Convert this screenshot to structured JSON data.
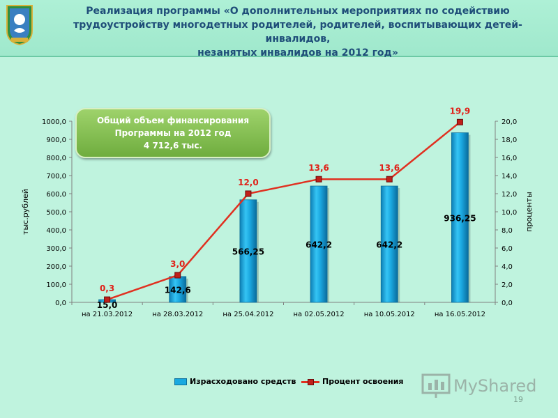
{
  "header": {
    "title_lines": [
      "Реализация программы «О дополнительных мероприятиях по содействию",
      "трудоустройству многодетных родителей, родителей, воспитывающих детей-инвалидов,",
      "незанятых инвалидов на 2012 год»"
    ]
  },
  "finance_box": {
    "lines": [
      "Общий объем финансирования",
      "Программы на 2012 год",
      "4 712,6 тыс."
    ]
  },
  "chart_data": {
    "type": "bar",
    "categories": [
      "на 21.03.2012",
      "на 28.03.2012",
      "на 25.04.2012",
      "на 02.05.2012",
      "на 10.05.2012",
      "на 16.05.2012"
    ],
    "series": [
      {
        "name": "Израсходовано средств",
        "type": "bar",
        "axis": "left",
        "values": [
          15.0,
          142.6,
          566.25,
          642.2,
          642.2,
          936.25
        ],
        "labels": [
          "15,0",
          "142,6",
          "566,25",
          "642,2",
          "642,2",
          "936,25"
        ]
      },
      {
        "name": "Процент освоения",
        "type": "line",
        "axis": "right",
        "values": [
          0.3,
          3.0,
          12.0,
          13.6,
          13.6,
          19.9
        ],
        "labels": [
          "0,3",
          "3,0",
          "12,0",
          "13,6",
          "13,6",
          "19,9"
        ]
      }
    ],
    "ylabel": "тыс.рублей",
    "y2label": "проценты",
    "ylim": [
      0,
      1000
    ],
    "y2lim": [
      0,
      20
    ],
    "yticks": [
      "0,0",
      "100,0",
      "200,0",
      "300,0",
      "400,0",
      "500,0",
      "600,0",
      "700,0",
      "800,0",
      "900,0",
      "1000,0"
    ],
    "y2ticks": [
      "0,0",
      "2,0",
      "4,0",
      "6,0",
      "8,0",
      "10,0",
      "12,0",
      "14,0",
      "16,0",
      "18,0",
      "20,0"
    ],
    "legend": "bottom",
    "grid": false
  },
  "colors": {
    "background": "#bff3de",
    "title": "#1f4e79",
    "bar": "#19a9e0",
    "line": "#e03020",
    "line_label": "#e02018",
    "finance_box": "#7fbf4a"
  },
  "watermark": {
    "text": "MyShared"
  },
  "page_number": "19"
}
